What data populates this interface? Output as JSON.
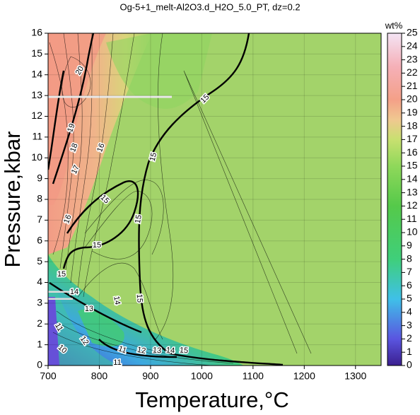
{
  "chart_data": {
    "type": "contour",
    "title": "Og-5+1_melt-Al2O3.d_H2O_5.0_PT, dz=0.2",
    "xlabel": "Temperature,°C",
    "ylabel": "Pressure,kbar",
    "xlim": [
      700,
      1350
    ],
    "xticks": [
      700,
      800,
      900,
      1000,
      1100,
      1200,
      1300
    ],
    "ylim": [
      0,
      16
    ],
    "yticks": [
      0,
      1,
      2,
      3,
      4,
      5,
      6,
      7,
      8,
      9,
      10,
      11,
      12,
      13,
      14,
      15,
      16
    ],
    "colorbar": {
      "label": "wt%",
      "lim": [
        0,
        25
      ],
      "ticks": [
        0,
        1,
        2,
        3,
        4,
        5,
        6,
        7,
        8,
        9,
        10,
        11,
        12,
        13,
        14,
        15,
        16,
        17,
        18,
        19,
        20,
        21,
        22,
        23,
        24,
        25
      ]
    },
    "contour_labels": [
      20,
      19,
      18,
      17,
      16,
      16,
      15,
      15,
      15,
      15,
      15,
      15,
      14,
      13,
      14,
      15,
      11,
      12,
      11,
      12,
      13,
      14,
      15,
      10,
      11
    ],
    "grid": true
  }
}
